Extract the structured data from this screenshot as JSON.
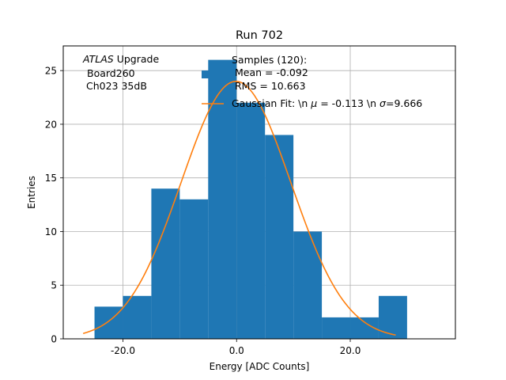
{
  "chart_data": {
    "type": "bar",
    "title": "Run 702",
    "xlabel": "Energy [ADC Counts]",
    "ylabel": "Entries",
    "xlim": [
      -30.5,
      38.5
    ],
    "ylim": [
      0,
      27.3
    ],
    "grid": true,
    "xticks": [
      -20,
      0,
      20
    ],
    "xtick_labels": [
      "-20.0",
      "0.0",
      "20.0"
    ],
    "yticks": [
      0,
      5,
      10,
      15,
      20,
      25
    ],
    "ytick_labels": [
      "0",
      "5",
      "10",
      "15",
      "20",
      "25"
    ],
    "bar_color": "#1f77b4",
    "fit_color": "#ff7f0e",
    "histogram": {
      "bin_edges": [
        -25,
        -20,
        -15,
        -10,
        -5,
        0,
        5,
        10,
        15,
        20,
        25,
        30
      ],
      "counts": [
        3,
        4,
        14,
        13,
        26,
        22,
        19,
        10,
        2,
        2,
        4
      ]
    },
    "gaussian_fit": {
      "amplitude": 24,
      "mu": -0.113,
      "sigma": 9.666,
      "x_range": [
        -27,
        28
      ]
    },
    "annotation": {
      "italic": "ATLAS",
      "rest": " Upgrade",
      "line2": "Board260",
      "line3": "Ch023 35dB"
    },
    "legend": {
      "placement": "top-right",
      "samples_line1": "Samples (120):",
      "samples_line2": "Mean = -0.092",
      "samples_line3": "RMS = 10.663",
      "fit_label_a": "Gaussian Fit: \\n ",
      "fit_label_mu": "μ",
      "fit_label_b": " = -0.113 \\n ",
      "fit_label_sigma": "σ",
      "fit_label_c": "=9.666"
    }
  }
}
